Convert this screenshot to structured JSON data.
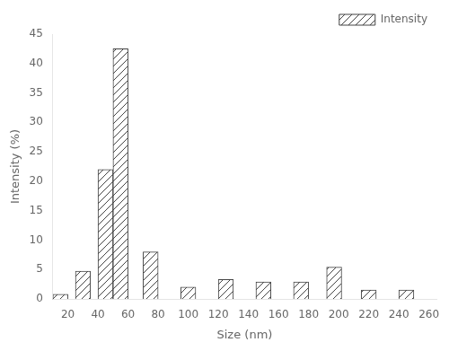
{
  "chart_data": {
    "type": "bar",
    "x": [
      15,
      30,
      45,
      55,
      75,
      100,
      125,
      150,
      175,
      197,
      220,
      245
    ],
    "series": [
      {
        "name": "Intensity",
        "color": "#444444",
        "values": [
          0.8,
          4.7,
          22.0,
          42.5,
          8.0,
          2.0,
          3.3,
          2.9,
          2.9,
          5.4,
          1.5,
          1.5
        ]
      }
    ],
    "xlabel": "Size (nm)",
    "ylabel": "Intensity (%)",
    "xlim": [
      10,
      265
    ],
    "ylim": [
      0,
      45
    ],
    "xticks": [
      20,
      40,
      60,
      80,
      100,
      120,
      140,
      160,
      180,
      200,
      220,
      240,
      260
    ],
    "yticks": [
      0,
      5,
      10,
      15,
      20,
      25,
      30,
      35,
      40,
      45
    ],
    "grid": false,
    "legend": "upper right"
  }
}
